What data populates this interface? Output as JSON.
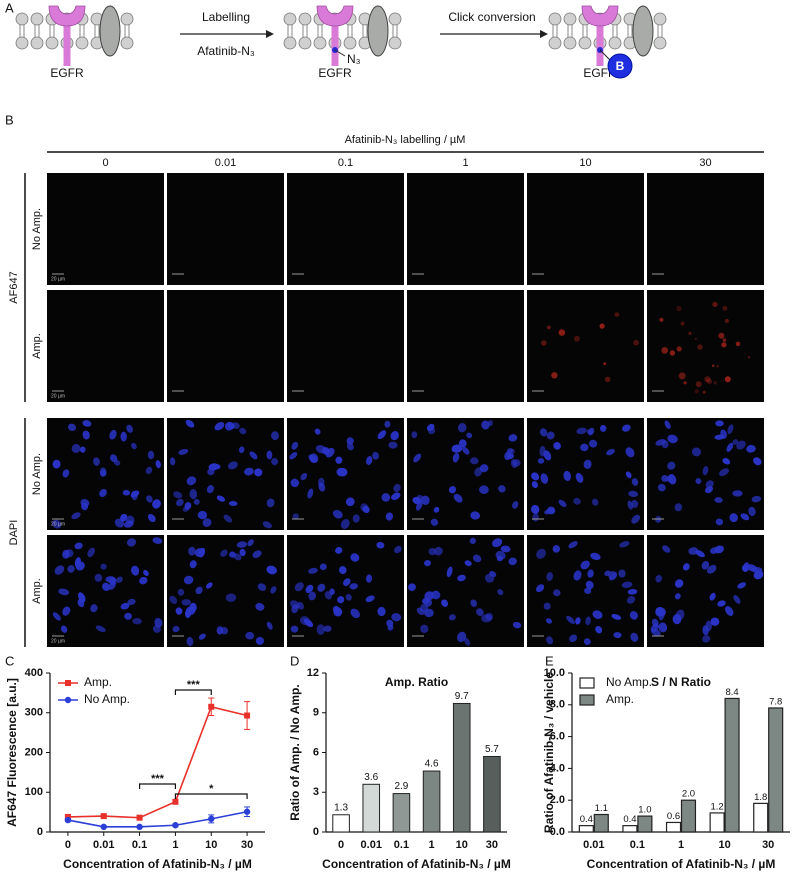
{
  "panel_labels": [
    "A",
    "B",
    "C",
    "D",
    "E"
  ],
  "diagram": {
    "step1": {
      "label": "Labelling",
      "reagent": "Afatinib-N₃"
    },
    "step2": {
      "label": "Click conversion"
    },
    "receptor": "EGFR",
    "azide": "N₃",
    "bead": "B"
  },
  "microscopy": {
    "header": "Afatinib-N₃ labelling / µM",
    "columns": [
      "0",
      "0.01",
      "0.1",
      "1",
      "10",
      "30"
    ],
    "groups": [
      {
        "label": "AF647",
        "rows": [
          "No Amp.",
          "Amp."
        ]
      },
      {
        "label": "DAPI",
        "rows": [
          "No Amp.",
          "Amp."
        ]
      }
    ],
    "scale_bar": "20 µm"
  },
  "chart_data": [
    {
      "type": "line",
      "x_label": "Concentration of Afatinib-N₃ / µM",
      "y_label": "AF647 Fluorescence [a.u.]",
      "categories": [
        "0",
        "0.01",
        "0.1",
        "1",
        "10",
        "30"
      ],
      "series": [
        {
          "name": "Amp.",
          "color": "#e8312a",
          "marker": "square",
          "values": [
            38,
            40,
            36,
            76,
            315,
            293
          ],
          "errors": [
            4,
            3,
            3,
            5,
            22,
            35
          ]
        },
        {
          "name": "No Amp.",
          "color": "#2b3fd6",
          "marker": "circle",
          "values": [
            30,
            13,
            13,
            17,
            33,
            51
          ],
          "errors": [
            3,
            2,
            2,
            3,
            10,
            12
          ]
        }
      ],
      "annotations": [
        {
          "text": "***",
          "between": [
            "1",
            "10"
          ]
        },
        {
          "text": "***",
          "between": [
            "0.1",
            "1"
          ]
        },
        {
          "text": "*",
          "between": [
            "1",
            "30"
          ]
        }
      ],
      "ylim": [
        0,
        400
      ],
      "yticks": [
        0,
        100,
        200,
        300,
        400
      ],
      "legend": "upper left"
    },
    {
      "type": "bar",
      "title": "Amp. Ratio",
      "x_label": "Concentration of Afatinib-N₃ / µM",
      "y_label": "Ratio of Amp. / No Amp.",
      "categories": [
        "0",
        "0.01",
        "0.1",
        "1",
        "10",
        "30"
      ],
      "values": [
        1.3,
        3.6,
        2.9,
        4.6,
        9.7,
        5.7
      ],
      "colors": [
        "#ffffff",
        "#d3d9d6",
        "#8f9895",
        "#7c8682",
        "#6b7471",
        "#575e5c"
      ],
      "ylim": [
        0,
        12
      ],
      "yticks": [
        0,
        3,
        6,
        9,
        12
      ]
    },
    {
      "type": "bar",
      "title": "S / N Ratio",
      "x_label": "Concentration of Afatinib-N₃ / µM",
      "y_label": "Ratio of Afatinib-N₃ / vehicle",
      "categories": [
        "0.01",
        "0.1",
        "1",
        "10",
        "30"
      ],
      "series": [
        {
          "name": "No Amp.",
          "color": "#ffffff",
          "values": [
            0.4,
            0.4,
            0.6,
            1.2,
            1.8
          ]
        },
        {
          "name": "Amp.",
          "color": "#7d8784",
          "values": [
            1.1,
            1.0,
            2.0,
            8.4,
            7.8
          ],
          "value_labels": [
            "1.1",
            "1.0",
            "2.0",
            "8.4",
            "7.8"
          ]
        }
      ],
      "ylim": [
        0,
        10
      ],
      "yticks": [
        {
          "value": 0,
          "label": "0.0"
        },
        {
          "value": 2,
          "label": "2.0"
        },
        {
          "value": 4,
          "label": "4.0"
        },
        {
          "value": 6,
          "label": "6.0"
        },
        {
          "value": 8,
          "label": "8.0"
        },
        {
          "value": 10,
          "label": "10.0"
        }
      ],
      "legend": "upper left"
    }
  ]
}
